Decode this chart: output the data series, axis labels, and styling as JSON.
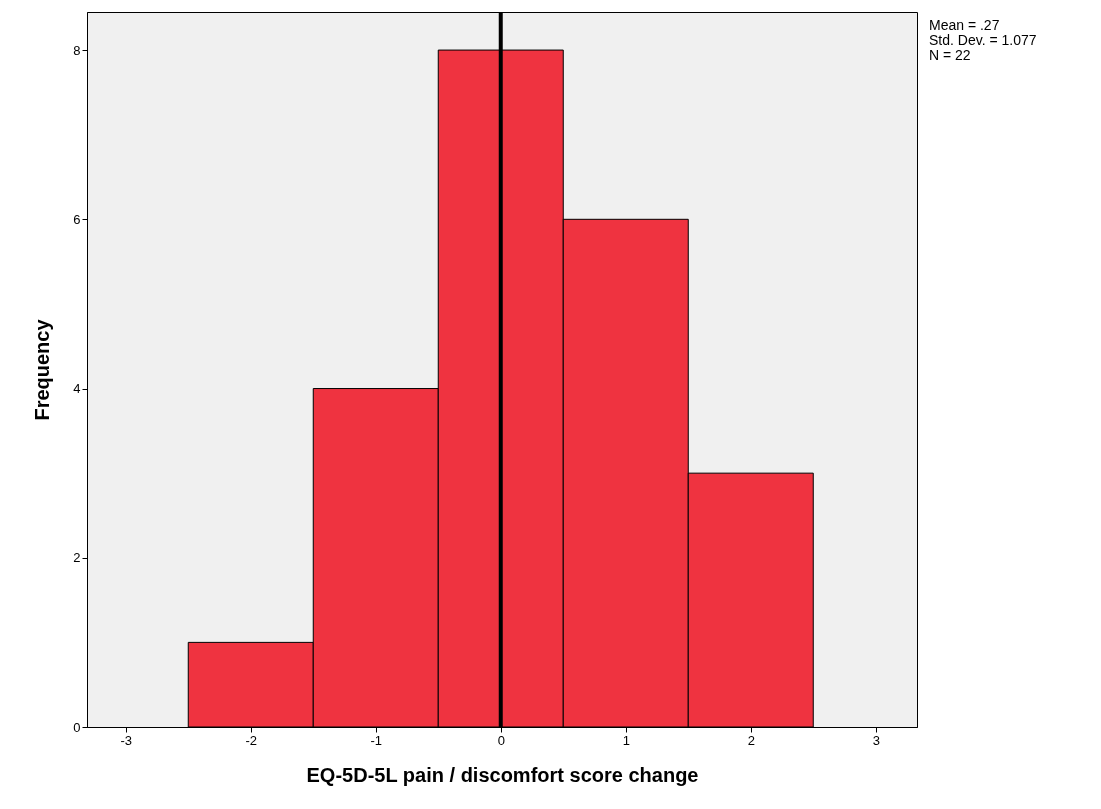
{
  "chart_data": {
    "type": "histogram",
    "xlabel": "EQ-5D-5L pain / discomfort score change",
    "ylabel": "Frequency",
    "bins": [
      -2.5,
      -1.5,
      -0.5,
      0.5,
      1.5,
      2.5
    ],
    "values": [
      1,
      4,
      8,
      6,
      3
    ],
    "color": "#ef3340",
    "xlim": [
      -3.31,
      3.33
    ],
    "xticks": [
      -3,
      -2,
      -1,
      0,
      1,
      2,
      3
    ],
    "ylim": [
      0,
      8.45
    ],
    "yticks": [
      0,
      2,
      4,
      6,
      8
    ],
    "ref_lines": [
      {
        "axis": "x",
        "value": 0,
        "color": "#000000"
      }
    ],
    "annotations": [
      "Mean = .27",
      "Std. Dev. = 1.077",
      "N = 22"
    ]
  }
}
